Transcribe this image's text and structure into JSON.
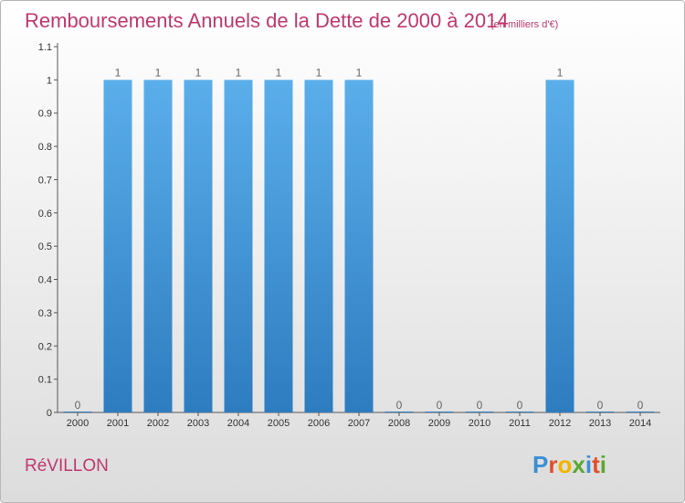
{
  "chart_data": {
    "type": "bar",
    "title": "Remboursements Annuels de la Dette de 2000 à 2014",
    "unit": "(en milliers d'€)",
    "categories": [
      "2000",
      "2001",
      "2002",
      "2003",
      "2004",
      "2005",
      "2006",
      "2007",
      "2008",
      "2009",
      "2010",
      "2011",
      "2012",
      "2013",
      "2014"
    ],
    "values": [
      0,
      1,
      1,
      1,
      1,
      1,
      1,
      1,
      0,
      0,
      0,
      0,
      1,
      0,
      0
    ],
    "value_labels": [
      "0",
      "1",
      "1",
      "1",
      "1",
      "1",
      "1",
      "1",
      "0",
      "0",
      "0",
      "0",
      "1",
      "0",
      "0"
    ],
    "ylim": [
      0,
      1.1
    ],
    "yticks": [
      0,
      0.1,
      0.2,
      0.3,
      0.4,
      0.5,
      0.6,
      0.7,
      0.8,
      0.9,
      1,
      1.1
    ],
    "ytick_labels": [
      "0",
      "0.1",
      "0.2",
      "0.3",
      "0.4",
      "0.5",
      "0.6",
      "0.7",
      "0.8",
      "0.9",
      "1",
      "1.1"
    ],
    "grid": false,
    "bar_color": "#3a8fd6",
    "xlabel": "",
    "ylabel": ""
  },
  "place_name": "RéVILLON",
  "logo": {
    "text": "Proxiti",
    "letters": [
      "P",
      "r",
      "o",
      "x",
      "i",
      "t",
      "i"
    ],
    "colors": [
      "#3a8fd6",
      "#e0502a",
      "#f0b400",
      "#5aa832",
      "#3a8fd6",
      "#e0502a",
      "#5aa832"
    ]
  },
  "colors": {
    "title": "#c0386e",
    "bar": "#3a8fd6",
    "axis": "#555555"
  }
}
